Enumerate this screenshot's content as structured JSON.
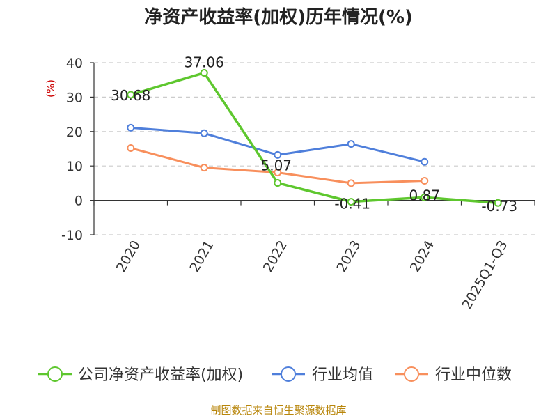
{
  "chart_data": {
    "type": "line",
    "title": "净资产收益率(加权)历年情况(%)",
    "ylabel": "(%)",
    "xlabel": "",
    "categories": [
      "2020",
      "2021",
      "2022",
      "2023",
      "2024",
      "2025Q1-Q3"
    ],
    "ylim": [
      -10,
      40
    ],
    "yticks": [
      40,
      30,
      20,
      10,
      0,
      -10
    ],
    "grid": true,
    "legend_position": "bottom",
    "series": [
      {
        "name": "公司净资产收益率(加权)",
        "color": "#5ec72e",
        "values": [
          30.68,
          37.06,
          5.07,
          -0.41,
          0.87,
          -0.73
        ],
        "labels": [
          "30.68",
          "37.06",
          "5.07",
          "-0.41",
          "0.87",
          "-0.73"
        ]
      },
      {
        "name": "行业均值",
        "color": "#4f7fdb",
        "values": [
          21.1,
          19.5,
          13.2,
          16.4,
          11.2,
          null
        ]
      },
      {
        "name": "行业中位数",
        "color": "#f88f5c",
        "values": [
          15.2,
          9.5,
          8.1,
          5.0,
          5.7,
          null
        ]
      }
    ]
  },
  "source_text": "制图数据来自恒生聚源数据库"
}
